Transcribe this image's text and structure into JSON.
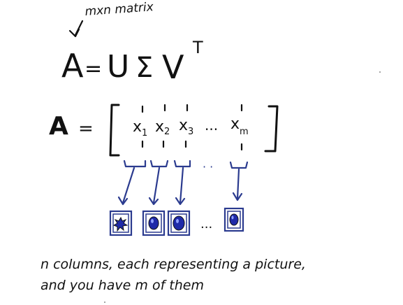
{
  "matrix_note": "mxn matrix",
  "svd_equation": {
    "lhs": "A",
    "eq": "=",
    "u": "U",
    "sigma": "Σ",
    "v": "V",
    "transpose": "T"
  },
  "matrix_def": {
    "lhs": "A",
    "eq": "=",
    "columns": [
      {
        "base": "x",
        "sub": "1"
      },
      {
        "base": "x",
        "sub": "2"
      },
      {
        "base": "x",
        "sub": "3"
      },
      {
        "base": "x",
        "sub": "m"
      }
    ],
    "ellipsis": "..."
  },
  "pictures": {
    "ellipsis": "..."
  },
  "caption": {
    "line1": "n columns, each representing a picture,",
    "line2": "and you have m of them"
  },
  "colors": {
    "ink": "#111111",
    "blue_ink": "#2b3b8f",
    "blob": "#1f2aa8"
  }
}
